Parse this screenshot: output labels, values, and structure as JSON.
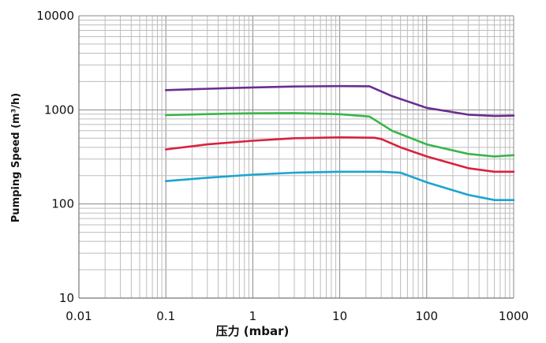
{
  "chart_data": {
    "type": "line",
    "title": "",
    "xlabel": "压力 (mbar)",
    "ylabel": "Pumping Speed (m³/h)",
    "x_scale": "log",
    "y_scale": "log",
    "xlim": [
      0.01,
      1000
    ],
    "ylim": [
      10,
      10000
    ],
    "x_ticks": [
      {
        "value": 0.01,
        "label": "0.01"
      },
      {
        "value": 0.1,
        "label": "0.1"
      },
      {
        "value": 1,
        "label": "1"
      },
      {
        "value": 10,
        "label": "10"
      },
      {
        "value": 100,
        "label": "100"
      },
      {
        "value": 1000,
        "label": "1000"
      }
    ],
    "y_ticks": [
      {
        "value": 10,
        "label": "10"
      },
      {
        "value": 100,
        "label": "100"
      },
      {
        "value": 1000,
        "label": "1000"
      },
      {
        "value": 10000,
        "label": "10000"
      }
    ],
    "grid": true,
    "legend": "none",
    "series": [
      {
        "color": "#6a2d91",
        "x": [
          0.1,
          0.5,
          1,
          3,
          10,
          22,
          40,
          100,
          300,
          600,
          1000
        ],
        "y": [
          1620,
          1700,
          1730,
          1770,
          1790,
          1780,
          1400,
          1050,
          890,
          860,
          870
        ]
      },
      {
        "color": "#3ab54a",
        "x": [
          0.1,
          0.5,
          1,
          3,
          10,
          22,
          40,
          100,
          300,
          600,
          1000
        ],
        "y": [
          880,
          910,
          920,
          925,
          900,
          850,
          600,
          430,
          340,
          320,
          330
        ]
      },
      {
        "color": "#d9213f",
        "x": [
          0.1,
          0.3,
          1,
          3,
          10,
          25,
          30,
          50,
          100,
          300,
          600,
          1000
        ],
        "y": [
          380,
          430,
          470,
          500,
          510,
          505,
          490,
          400,
          320,
          240,
          220,
          220
        ]
      },
      {
        "color": "#1ba4cf",
        "x": [
          0.1,
          0.3,
          1,
          3,
          10,
          30,
          50,
          100,
          300,
          600,
          1000
        ],
        "y": [
          175,
          190,
          205,
          215,
          220,
          220,
          215,
          170,
          125,
          110,
          110
        ]
      }
    ]
  }
}
